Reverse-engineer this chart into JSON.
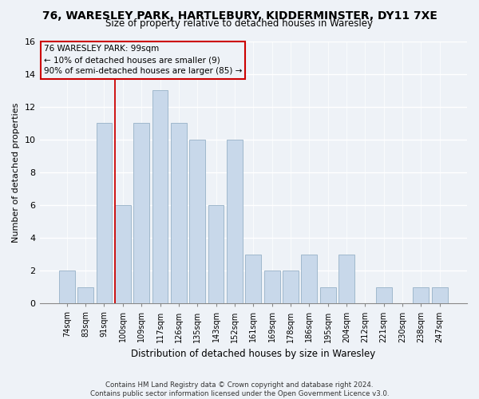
{
  "title": "76, WARESLEY PARK, HARTLEBURY, KIDDERMINSTER, DY11 7XE",
  "subtitle": "Size of property relative to detached houses in Waresley",
  "xlabel": "Distribution of detached houses by size in Waresley",
  "ylabel": "Number of detached properties",
  "bin_labels": [
    "74sqm",
    "83sqm",
    "91sqm",
    "100sqm",
    "109sqm",
    "117sqm",
    "126sqm",
    "135sqm",
    "143sqm",
    "152sqm",
    "161sqm",
    "169sqm",
    "178sqm",
    "186sqm",
    "195sqm",
    "204sqm",
    "212sqm",
    "221sqm",
    "230sqm",
    "238sqm",
    "247sqm"
  ],
  "bar_heights": [
    2,
    1,
    11,
    6,
    11,
    13,
    11,
    10,
    6,
    10,
    3,
    2,
    2,
    3,
    1,
    3,
    0,
    1,
    0,
    1,
    1
  ],
  "bar_color": "#c8d8ea",
  "bar_edgecolor": "#a0b8cc",
  "vline_bin_idx": 3,
  "vline_color": "#cc0000",
  "ylim": [
    0,
    16
  ],
  "yticks": [
    0,
    2,
    4,
    6,
    8,
    10,
    12,
    14,
    16
  ],
  "annotation_line1": "76 WARESLEY PARK: 99sqm",
  "annotation_line2": "← 10% of detached houses are smaller (9)",
  "annotation_line3": "90% of semi-detached houses are larger (85) →",
  "annotation_box_edgecolor": "#cc0000",
  "footer1": "Contains HM Land Registry data © Crown copyright and database right 2024.",
  "footer2": "Contains public sector information licensed under the Open Government Licence v3.0.",
  "background_color": "#eef2f7"
}
